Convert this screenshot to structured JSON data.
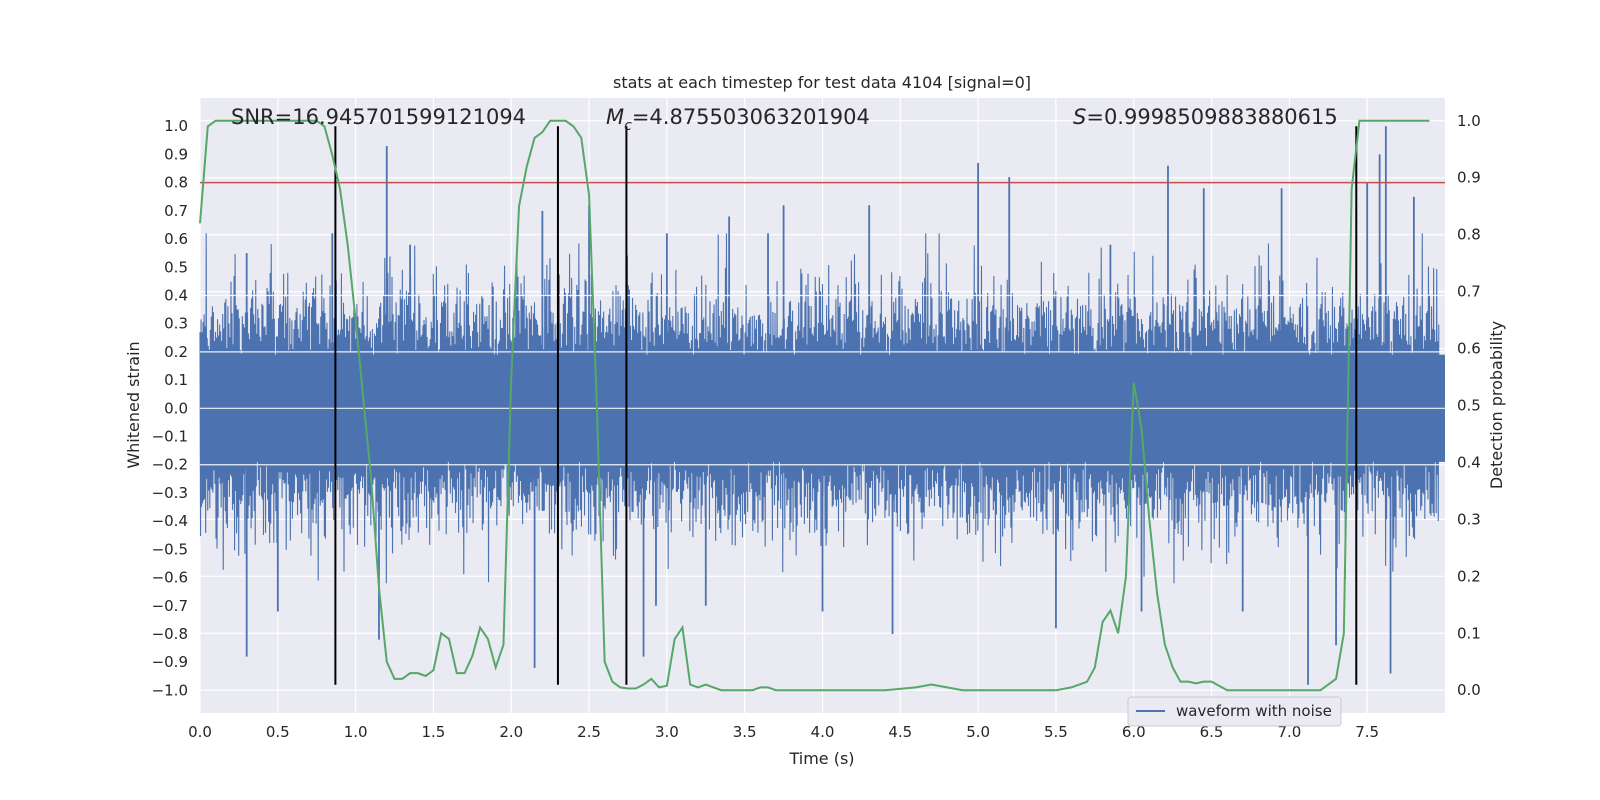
{
  "chart_data": {
    "type": "line",
    "title": "stats at each timestep for test data 4104 [signal=0]",
    "xlabel": "Time (s)",
    "ylabel_left": "Whitened strain",
    "ylabel_right": "Detection probability",
    "xlim": [
      0.0,
      8.0
    ],
    "ylim_left": [
      -1.08,
      1.1
    ],
    "ylim_right": [
      -0.04,
      1.04
    ],
    "x_ticks": [
      "0.0",
      "0.5",
      "1.0",
      "1.5",
      "2.0",
      "2.5",
      "3.0",
      "3.5",
      "4.0",
      "4.5",
      "5.0",
      "5.5",
      "6.0",
      "6.5",
      "7.0",
      "7.5"
    ],
    "y_ticks_left": [
      "-1.0",
      "-0.9",
      "-0.8",
      "-0.7",
      "-0.6",
      "-0.5",
      "-0.4",
      "-0.3",
      "-0.2",
      "-0.1",
      "0.0",
      "0.1",
      "0.2",
      "0.3",
      "0.4",
      "0.5",
      "0.6",
      "0.7",
      "0.8",
      "0.9",
      "1.0"
    ],
    "y_ticks_right": [
      "0.0",
      "0.1",
      "0.2",
      "0.3",
      "0.4",
      "0.5",
      "0.6",
      "0.7",
      "0.8",
      "0.9",
      "1.0"
    ],
    "grid": true,
    "legend": {
      "position": "lower-right",
      "entries": [
        "waveform with noise"
      ]
    },
    "annotations": {
      "snr": "SNR=16.945701599121094",
      "mc_symbol": "M",
      "mc_sub": "c",
      "mc_value": "=4.875503063201904",
      "s_symbol": "S",
      "s_value": "=0.9998509883880615"
    },
    "threshold_left": 0.8,
    "vertical_markers": [
      0.87,
      2.3,
      2.74,
      7.43
    ],
    "series": [
      {
        "name": "waveform with noise",
        "axis": "left",
        "color": "#4c72b0",
        "style": "dense noise, typical envelope approx ±0.45 with peaks to ±1.0",
        "envelope_typical": 0.45,
        "peaks": [
          [
            0.3,
            -0.88
          ],
          [
            0.3,
            0.55
          ],
          [
            0.5,
            -0.72
          ],
          [
            0.85,
            0.62
          ],
          [
            1.15,
            -0.82
          ],
          [
            1.2,
            0.93
          ],
          [
            1.35,
            0.58
          ],
          [
            2.15,
            -0.92
          ],
          [
            2.2,
            0.7
          ],
          [
            2.5,
            0.72
          ],
          [
            2.85,
            -0.88
          ],
          [
            2.93,
            -0.7
          ],
          [
            3.0,
            0.62
          ],
          [
            3.25,
            -0.7
          ],
          [
            3.4,
            0.68
          ],
          [
            3.65,
            0.62
          ],
          [
            3.75,
            0.72
          ],
          [
            4.0,
            -0.72
          ],
          [
            4.3,
            0.72
          ],
          [
            4.45,
            -0.8
          ],
          [
            5.0,
            0.87
          ],
          [
            5.2,
            0.82
          ],
          [
            5.5,
            -0.78
          ],
          [
            5.85,
            0.58
          ],
          [
            6.05,
            -0.72
          ],
          [
            6.22,
            0.86
          ],
          [
            6.45,
            0.78
          ],
          [
            6.7,
            -0.72
          ],
          [
            6.95,
            0.78
          ],
          [
            7.12,
            -0.98
          ],
          [
            7.3,
            -0.84
          ],
          [
            7.5,
            0.8
          ],
          [
            7.58,
            0.9
          ],
          [
            7.62,
            1.0
          ],
          [
            7.65,
            -0.94
          ],
          [
            7.8,
            0.75
          ]
        ]
      },
      {
        "name": "detection probability",
        "axis": "right",
        "color": "#55a868",
        "x": [
          0.0,
          0.05,
          0.1,
          0.15,
          0.2,
          0.3,
          0.4,
          0.5,
          0.6,
          0.7,
          0.75,
          0.8,
          0.85,
          0.9,
          0.95,
          1.0,
          1.05,
          1.1,
          1.15,
          1.2,
          1.25,
          1.3,
          1.35,
          1.4,
          1.45,
          1.5,
          1.55,
          1.6,
          1.65,
          1.7,
          1.75,
          1.8,
          1.85,
          1.9,
          1.95,
          2.0,
          2.05,
          2.1,
          2.15,
          2.2,
          2.25,
          2.3,
          2.35,
          2.4,
          2.45,
          2.5,
          2.55,
          2.6,
          2.65,
          2.7,
          2.75,
          2.8,
          2.85,
          2.9,
          2.95,
          3.0,
          3.05,
          3.1,
          3.15,
          3.2,
          3.25,
          3.3,
          3.35,
          3.4,
          3.45,
          3.5,
          3.55,
          3.6,
          3.65,
          3.7,
          3.75,
          3.8,
          3.85,
          3.9,
          3.95,
          4.0,
          4.2,
          4.4,
          4.6,
          4.7,
          4.8,
          4.9,
          5.0,
          5.2,
          5.4,
          5.5,
          5.6,
          5.7,
          5.75,
          5.8,
          5.85,
          5.9,
          5.95,
          6.0,
          6.05,
          6.1,
          6.15,
          6.2,
          6.25,
          6.3,
          6.35,
          6.4,
          6.45,
          6.5,
          6.6,
          6.7,
          6.8,
          6.9,
          7.0,
          7.2,
          7.25,
          7.3,
          7.35,
          7.4,
          7.45,
          7.5,
          7.6,
          7.7,
          7.8,
          7.9
        ],
        "y": [
          0.82,
          0.99,
          1.0,
          1.0,
          1.0,
          1.0,
          1.0,
          1.0,
          1.0,
          1.0,
          1.0,
          0.99,
          0.94,
          0.88,
          0.78,
          0.65,
          0.51,
          0.37,
          0.18,
          0.05,
          0.02,
          0.02,
          0.03,
          0.03,
          0.025,
          0.035,
          0.1,
          0.09,
          0.03,
          0.03,
          0.06,
          0.11,
          0.09,
          0.04,
          0.08,
          0.55,
          0.85,
          0.92,
          0.97,
          0.98,
          1.0,
          1.0,
          1.0,
          0.99,
          0.97,
          0.87,
          0.5,
          0.05,
          0.015,
          0.005,
          0.003,
          0.003,
          0.01,
          0.02,
          0.005,
          0.008,
          0.09,
          0.11,
          0.01,
          0.005,
          0.01,
          0.005,
          0.0,
          0.0,
          0.0,
          0.0,
          0.0,
          0.005,
          0.005,
          0.0,
          0.0,
          0.0,
          0.0,
          0.0,
          0.0,
          0.0,
          0.0,
          0.0,
          0.005,
          0.01,
          0.005,
          0.0,
          0.0,
          0.0,
          0.0,
          0.0,
          0.005,
          0.015,
          0.04,
          0.12,
          0.14,
          0.1,
          0.2,
          0.54,
          0.46,
          0.3,
          0.17,
          0.08,
          0.04,
          0.015,
          0.015,
          0.012,
          0.015,
          0.015,
          0.0,
          0.0,
          0.0,
          0.0,
          0.0,
          0.0,
          0.01,
          0.02,
          0.1,
          0.88,
          1.0,
          1.0,
          1.0,
          1.0,
          1.0,
          1.0
        ]
      }
    ]
  }
}
